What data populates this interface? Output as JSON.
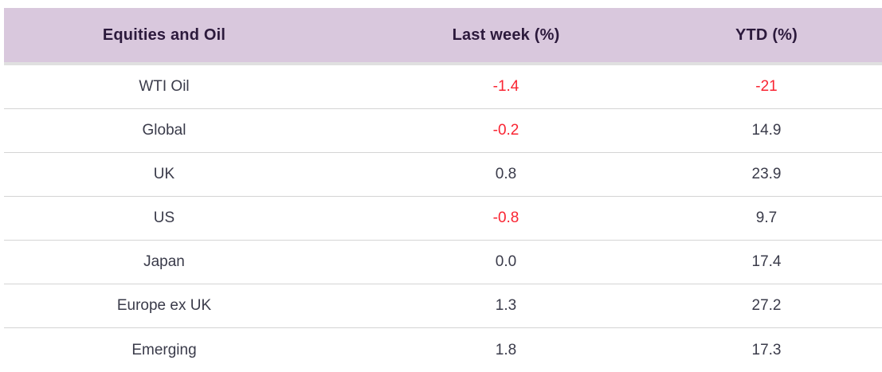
{
  "colors": {
    "header_bg": "#d9c8dd",
    "header_text": "#2c1a3c",
    "body_text": "#3a3b4a",
    "negative": "#f92432",
    "divider": "#d4d4d4",
    "header_strip": "#e0e0e0",
    "page_bg": "#ffffff"
  },
  "table": {
    "columns": {
      "name": "Equities and Oil",
      "last_week": "Last week (%)",
      "ytd": "YTD (%)"
    },
    "rows": [
      {
        "name": "WTI Oil",
        "last_week": "-1.4",
        "ytd": "-21"
      },
      {
        "name": "Global",
        "last_week": "-0.2",
        "ytd": "14.9"
      },
      {
        "name": "UK",
        "last_week": "0.8",
        "ytd": "23.9"
      },
      {
        "name": "US",
        "last_week": "-0.8",
        "ytd": "9.7"
      },
      {
        "name": "Japan",
        "last_week": "0.0",
        "ytd": "17.4"
      },
      {
        "name": "Europe ex UK",
        "last_week": "1.3",
        "ytd": "27.2"
      },
      {
        "name": "Emerging",
        "last_week": "1.8",
        "ytd": "17.3"
      }
    ]
  },
  "chart_data": {
    "type": "table",
    "title": "Equities and Oil",
    "columns": [
      "Equities and Oil",
      "Last week (%)",
      "YTD (%)"
    ],
    "rows": [
      [
        "WTI Oil",
        -1.4,
        -21
      ],
      [
        "Global",
        -0.2,
        14.9
      ],
      [
        "UK",
        0.8,
        23.9
      ],
      [
        "US",
        -0.8,
        9.7
      ],
      [
        "Japan",
        0.0,
        17.4
      ],
      [
        "Europe ex UK",
        1.3,
        27.2
      ],
      [
        "Emerging",
        1.8,
        17.3
      ]
    ],
    "notes": "Negative values rendered in red; header row has lavender background; all cells center-aligned"
  }
}
